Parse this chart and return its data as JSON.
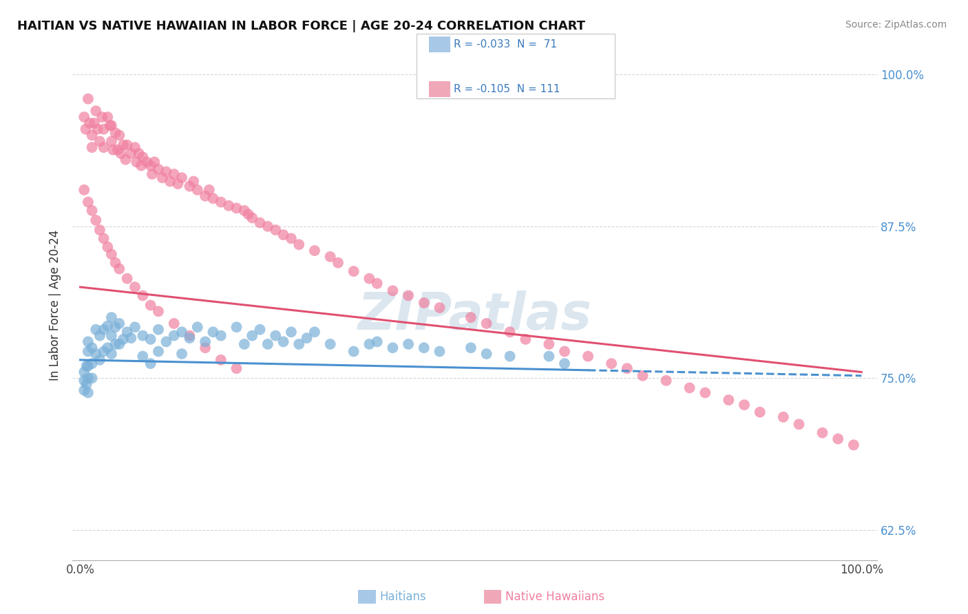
{
  "title": "HAITIAN VS NATIVE HAWAIIAN IN LABOR FORCE | AGE 20-24 CORRELATION CHART",
  "source": "Source: ZipAtlas.com",
  "ylabel": "In Labor Force | Age 20-24",
  "ytick_vals": [
    0.625,
    0.75,
    0.875,
    1.0
  ],
  "ytick_labels": [
    "62.5%",
    "75.0%",
    "87.5%",
    "100.0%"
  ],
  "haitian_color": "#7ab0d8",
  "hawaiian_color": "#f080a0",
  "haitian_line_color": "#4a90d0",
  "hawaiian_line_color": "#e05070",
  "haitian_R": -0.033,
  "haitian_N": 71,
  "hawaiian_R": -0.105,
  "hawaiian_N": 111,
  "watermark": "ZIPatlas",
  "bg_color": "#ffffff",
  "grid_color": "#cccccc",
  "legend_R1": "R = -0.033",
  "legend_N1": "N =  71",
  "legend_R2": "R = -0.105",
  "legend_N2": "N = 111",
  "haitian_x": [
    0.005,
    0.005,
    0.005,
    0.008,
    0.008,
    0.01,
    0.01,
    0.01,
    0.01,
    0.01,
    0.015,
    0.015,
    0.015,
    0.02,
    0.02,
    0.025,
    0.025,
    0.03,
    0.03,
    0.035,
    0.035,
    0.04,
    0.04,
    0.04,
    0.045,
    0.045,
    0.05,
    0.05,
    0.055,
    0.06,
    0.065,
    0.07,
    0.08,
    0.08,
    0.09,
    0.09,
    0.1,
    0.1,
    0.11,
    0.12,
    0.13,
    0.13,
    0.14,
    0.15,
    0.16,
    0.17,
    0.18,
    0.2,
    0.21,
    0.22,
    0.23,
    0.24,
    0.25,
    0.26,
    0.27,
    0.28,
    0.29,
    0.3,
    0.32,
    0.35,
    0.37,
    0.38,
    0.4,
    0.42,
    0.44,
    0.46,
    0.5,
    0.52,
    0.55,
    0.6,
    0.62
  ],
  "haitian_y": [
    0.755,
    0.748,
    0.74,
    0.76,
    0.745,
    0.78,
    0.772,
    0.76,
    0.75,
    0.738,
    0.775,
    0.762,
    0.75,
    0.79,
    0.77,
    0.785,
    0.765,
    0.79,
    0.772,
    0.793,
    0.775,
    0.8,
    0.785,
    0.77,
    0.792,
    0.778,
    0.795,
    0.778,
    0.782,
    0.788,
    0.783,
    0.792,
    0.785,
    0.768,
    0.782,
    0.762,
    0.79,
    0.772,
    0.78,
    0.785,
    0.788,
    0.77,
    0.783,
    0.792,
    0.78,
    0.788,
    0.785,
    0.792,
    0.778,
    0.785,
    0.79,
    0.778,
    0.785,
    0.78,
    0.788,
    0.778,
    0.783,
    0.788,
    0.778,
    0.772,
    0.778,
    0.78,
    0.775,
    0.778,
    0.775,
    0.772,
    0.775,
    0.77,
    0.768,
    0.768,
    0.762
  ],
  "hawaiian_x": [
    0.005,
    0.007,
    0.01,
    0.012,
    0.015,
    0.015,
    0.018,
    0.02,
    0.022,
    0.025,
    0.028,
    0.03,
    0.03,
    0.035,
    0.038,
    0.04,
    0.04,
    0.042,
    0.045,
    0.048,
    0.05,
    0.052,
    0.055,
    0.058,
    0.06,
    0.065,
    0.07,
    0.072,
    0.075,
    0.078,
    0.08,
    0.085,
    0.09,
    0.092,
    0.095,
    0.1,
    0.105,
    0.11,
    0.115,
    0.12,
    0.125,
    0.13,
    0.14,
    0.145,
    0.15,
    0.16,
    0.165,
    0.17,
    0.18,
    0.19,
    0.2,
    0.21,
    0.215,
    0.22,
    0.23,
    0.24,
    0.25,
    0.26,
    0.27,
    0.28,
    0.3,
    0.32,
    0.33,
    0.35,
    0.37,
    0.38,
    0.4,
    0.42,
    0.44,
    0.46,
    0.5,
    0.52,
    0.55,
    0.57,
    0.6,
    0.62,
    0.65,
    0.68,
    0.7,
    0.72,
    0.75,
    0.78,
    0.8,
    0.83,
    0.85,
    0.87,
    0.9,
    0.92,
    0.95,
    0.97,
    0.99,
    0.005,
    0.01,
    0.015,
    0.02,
    0.025,
    0.03,
    0.035,
    0.04,
    0.045,
    0.05,
    0.06,
    0.07,
    0.08,
    0.09,
    0.1,
    0.12,
    0.14,
    0.16,
    0.18,
    0.2
  ],
  "hawaiian_y": [
    0.965,
    0.955,
    0.98,
    0.96,
    0.95,
    0.94,
    0.96,
    0.97,
    0.955,
    0.945,
    0.965,
    0.955,
    0.94,
    0.965,
    0.958,
    0.945,
    0.958,
    0.938,
    0.952,
    0.938,
    0.95,
    0.935,
    0.942,
    0.93,
    0.942,
    0.935,
    0.94,
    0.928,
    0.935,
    0.925,
    0.932,
    0.928,
    0.925,
    0.918,
    0.928,
    0.922,
    0.915,
    0.92,
    0.912,
    0.918,
    0.91,
    0.915,
    0.908,
    0.912,
    0.905,
    0.9,
    0.905,
    0.898,
    0.895,
    0.892,
    0.89,
    0.888,
    0.885,
    0.882,
    0.878,
    0.875,
    0.872,
    0.868,
    0.865,
    0.86,
    0.855,
    0.85,
    0.845,
    0.838,
    0.832,
    0.828,
    0.822,
    0.818,
    0.812,
    0.808,
    0.8,
    0.795,
    0.788,
    0.782,
    0.778,
    0.772,
    0.768,
    0.762,
    0.758,
    0.752,
    0.748,
    0.742,
    0.738,
    0.732,
    0.728,
    0.722,
    0.718,
    0.712,
    0.705,
    0.7,
    0.695,
    0.905,
    0.895,
    0.888,
    0.88,
    0.872,
    0.865,
    0.858,
    0.852,
    0.845,
    0.84,
    0.832,
    0.825,
    0.818,
    0.81,
    0.805,
    0.795,
    0.785,
    0.775,
    0.765,
    0.758
  ]
}
